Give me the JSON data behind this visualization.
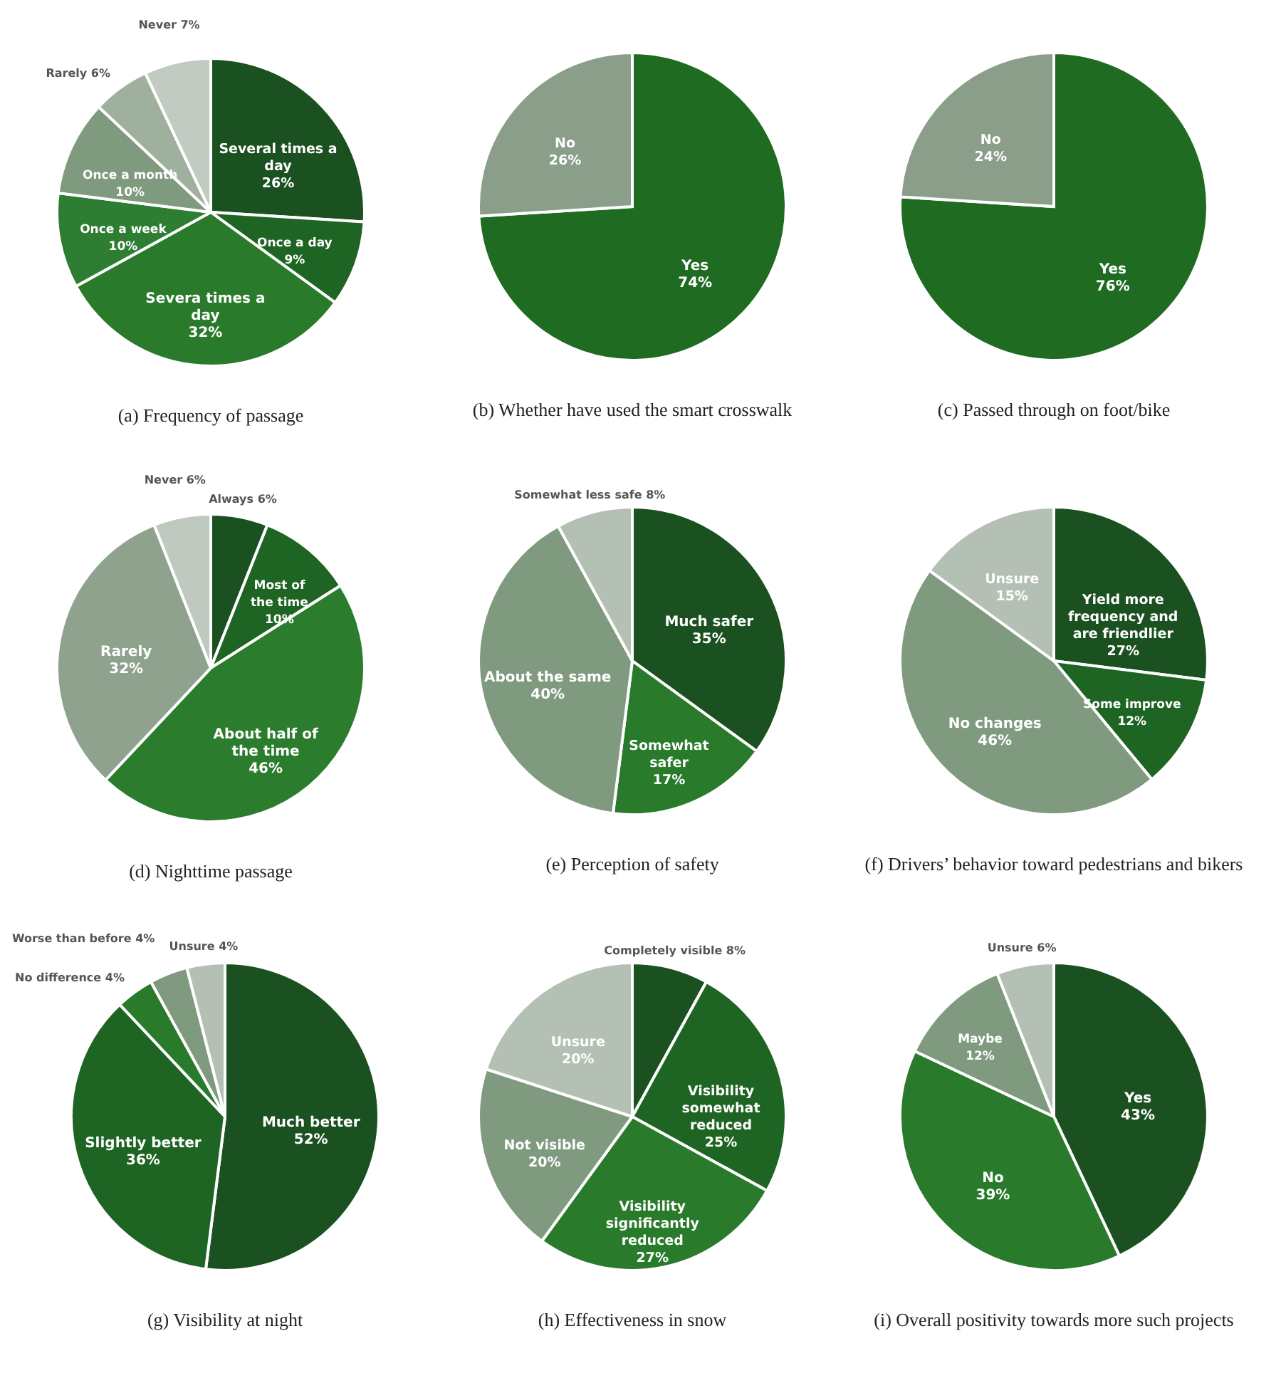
{
  "chart_data": [
    {
      "type": "pie",
      "title": "(a) Frequency of passage",
      "categories": [
        "Several times a day",
        "Once a day",
        "Severa times a day",
        "Once a week",
        "Once a month",
        "Rarely",
        "Never"
      ],
      "values": [
        26,
        9,
        32,
        10,
        10,
        6,
        7
      ],
      "value_labels": [
        "26%",
        "9%",
        "32%",
        "10%",
        "10%",
        "6%",
        "7%"
      ],
      "colors": [
        "#1b5120",
        "#1e6422",
        "#2a7a2c",
        "#2d7d32",
        "#7f9a7f",
        "#9fb09f",
        "#c2cbc2"
      ]
    },
    {
      "type": "pie",
      "title": "(b) Whether have used the smart crosswalk",
      "categories": [
        "Yes",
        "No"
      ],
      "values": [
        74,
        26
      ],
      "value_labels": [
        "74%",
        "26%"
      ],
      "colors": [
        "#1f6b22",
        "#8a9e8a"
      ]
    },
    {
      "type": "pie",
      "title": "(c) Passed through on foot/bike",
      "categories": [
        "Yes",
        "No"
      ],
      "values": [
        76,
        24
      ],
      "value_labels": [
        "76%",
        "24%"
      ],
      "colors": [
        "#1f6b22",
        "#8a9e8a"
      ]
    },
    {
      "type": "pie",
      "title": "(d) Nighttime passage",
      "categories": [
        "Always",
        "Most of the time",
        "About half of the time",
        "Rarely",
        "Never"
      ],
      "values": [
        6,
        10,
        46,
        32,
        6
      ],
      "value_labels": [
        "6%",
        "10%",
        "46%",
        "32%",
        "6%"
      ],
      "colors": [
        "#1b5120",
        "#1e6422",
        "#2b7d2d",
        "#8ea28e",
        "#bfc9bf"
      ]
    },
    {
      "type": "pie",
      "title": "(e) Perception of safety",
      "categories": [
        "Much safer",
        "Somewhat safer",
        "About the same",
        "Somewhat less safe"
      ],
      "values": [
        35,
        17,
        40,
        8
      ],
      "value_labels": [
        "35%",
        "17%",
        "40%",
        "8%"
      ],
      "colors": [
        "#1b5120",
        "#2a7a2c",
        "#7f9a7f",
        "#b5c0b5"
      ]
    },
    {
      "type": "pie",
      "title": "(f) Drivers’ behavior toward pedestrians and bikers",
      "categories": [
        "Yield more frequency and are friendlier",
        "Some improve",
        "No changes",
        "Unsure"
      ],
      "values": [
        27,
        12,
        46,
        15
      ],
      "value_labels": [
        "27%",
        "12%",
        "46%",
        "15%"
      ],
      "colors": [
        "#1b5120",
        "#1e6422",
        "#7f9a7f",
        "#b5c0b5"
      ]
    },
    {
      "type": "pie",
      "title": "(g) Visibility at night",
      "categories": [
        "Much better",
        "Slightly better",
        "No difference",
        "Worse than before",
        "Unsure"
      ],
      "values": [
        52,
        36,
        4,
        4,
        4
      ],
      "value_labels": [
        "52%",
        "36%",
        "4%",
        "4%",
        "4%"
      ],
      "colors": [
        "#1b5120",
        "#1e6422",
        "#2a7a2c",
        "#7f9a7f",
        "#b5c0b5"
      ]
    },
    {
      "type": "pie",
      "title": "(h) Effectiveness in snow",
      "categories": [
        "Completely visible",
        "Visibility somewhat reduced",
        "Visibility significantly reduced",
        "Not visible",
        "Unsure"
      ],
      "values": [
        8,
        25,
        27,
        20,
        20
      ],
      "value_labels": [
        "8%",
        "25%",
        "27%",
        "20%",
        "20%"
      ],
      "colors": [
        "#1b5120",
        "#1e6422",
        "#2a7a2c",
        "#7f9a7f",
        "#b5c0b5"
      ]
    },
    {
      "type": "pie",
      "title": "(i) Overall positivity towards more such projects",
      "categories": [
        "Yes",
        "No",
        "Maybe",
        "Unsure"
      ],
      "values": [
        43,
        39,
        12,
        6
      ],
      "value_labels": [
        "43%",
        "39%",
        "12%",
        "6%"
      ],
      "colors": [
        "#1b5120",
        "#2a7a2c",
        "#7f9a7f",
        "#b5c0b5"
      ]
    }
  ]
}
